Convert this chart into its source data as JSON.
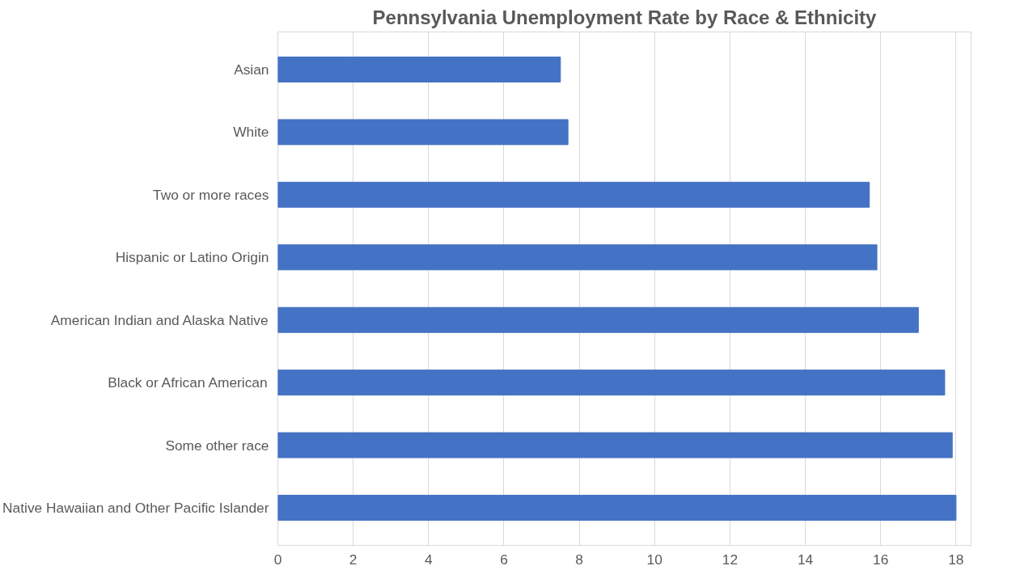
{
  "chart_data": {
    "type": "bar",
    "orientation": "horizontal",
    "title": "Pennsylvania Unemployment Rate by Race & Ethnicity",
    "categories": [
      "Asian",
      "White",
      "Two or more races",
      "Hispanic or Latino Origin",
      "American Indian and Alaska Native",
      "Black or African American",
      "Some other race",
      "Native Hawaiian and Other Pacific Islander"
    ],
    "values": [
      7.5,
      7.7,
      15.7,
      15.9,
      17.0,
      17.7,
      17.9,
      18.0
    ],
    "color": "#4472c4",
    "xlim": [
      0,
      18.4
    ],
    "xticks": [
      0,
      2,
      4,
      6,
      8,
      10,
      12,
      14,
      16,
      18
    ],
    "grid": "x"
  }
}
